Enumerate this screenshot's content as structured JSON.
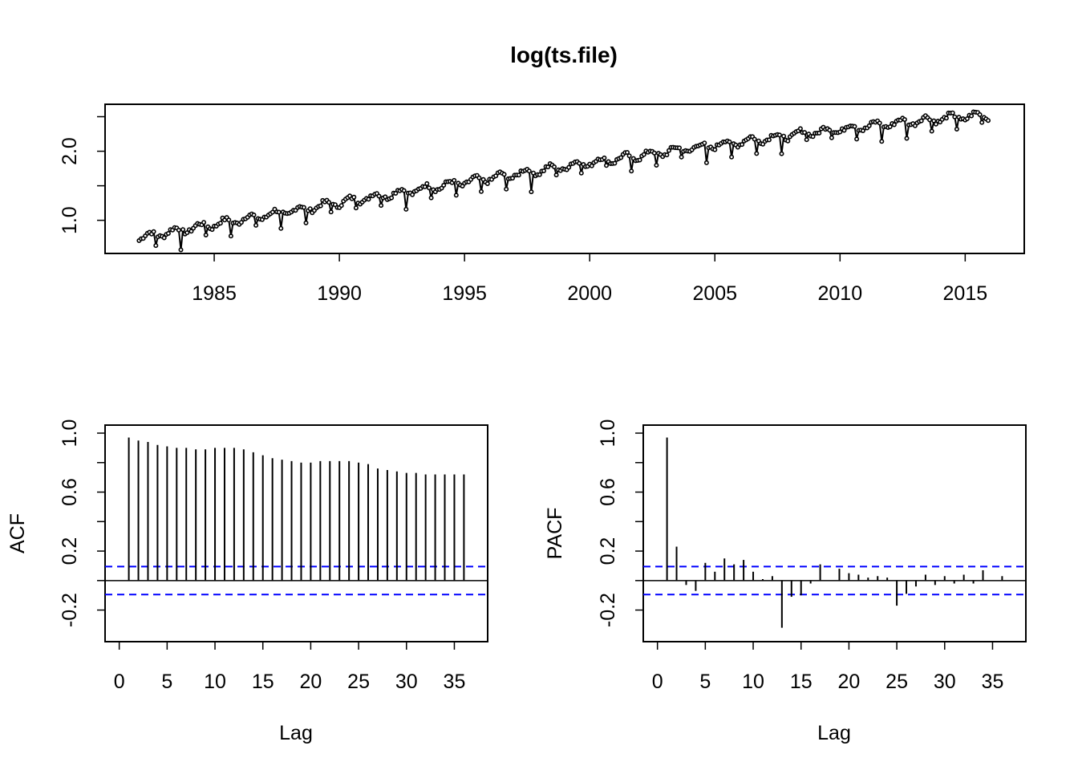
{
  "chart_data": [
    {
      "type": "line",
      "title": "log(ts.file)",
      "xlabel": "",
      "ylabel": "",
      "x_start": 1982.0,
      "frequency": 12,
      "xlim": [
        1982,
        2016
      ],
      "ylim": [
        0.6,
        2.6
      ],
      "xticks": [
        1985,
        1990,
        1995,
        2000,
        2005,
        2010,
        2015
      ],
      "yticks": [
        1.0,
        1.5,
        2.0,
        2.5
      ],
      "ytick_labels": [
        "1.0",
        "",
        "2.0",
        ""
      ],
      "trend": {
        "start": 0.75,
        "end": 2.52,
        "seasonal_amplitude": 0.05,
        "dip_month": 8,
        "dip_depth": 0.18
      },
      "line_color": "#000000",
      "grid": false
    },
    {
      "type": "bar",
      "title": "",
      "xlabel": "Lag",
      "ylabel": "ACF",
      "lags": [
        1,
        2,
        3,
        4,
        5,
        6,
        7,
        8,
        9,
        10,
        11,
        12,
        13,
        14,
        15,
        16,
        17,
        18,
        19,
        20,
        21,
        22,
        23,
        24,
        25,
        26,
        27,
        28,
        29,
        30,
        31,
        32,
        33,
        34,
        35,
        36
      ],
      "values": [
        0.97,
        0.95,
        0.94,
        0.92,
        0.91,
        0.9,
        0.9,
        0.89,
        0.89,
        0.9,
        0.9,
        0.9,
        0.89,
        0.87,
        0.85,
        0.83,
        0.82,
        0.81,
        0.8,
        0.8,
        0.81,
        0.81,
        0.81,
        0.81,
        0.8,
        0.79,
        0.76,
        0.75,
        0.74,
        0.73,
        0.73,
        0.72,
        0.72,
        0.72,
        0.72,
        0.72
      ],
      "ci": 0.095,
      "ci_color": "#0000ff",
      "xlim": [
        0,
        37
      ],
      "ylim": [
        -0.36,
        1.0
      ],
      "xticks": [
        0,
        5,
        10,
        15,
        20,
        25,
        30,
        35
      ],
      "yticks": [
        -0.2,
        0.2,
        0.6,
        1.0
      ],
      "ytick_labels": [
        "-0.2",
        "0.2",
        "0.6",
        "1.0"
      ]
    },
    {
      "type": "bar",
      "title": "",
      "xlabel": "Lag",
      "ylabel": "PACF",
      "lags": [
        1,
        2,
        3,
        4,
        5,
        6,
        7,
        8,
        9,
        10,
        11,
        12,
        13,
        14,
        15,
        16,
        17,
        18,
        19,
        20,
        21,
        22,
        23,
        24,
        25,
        26,
        27,
        28,
        29,
        30,
        31,
        32,
        33,
        34,
        35,
        36
      ],
      "values": [
        0.97,
        0.23,
        -0.03,
        -0.07,
        0.12,
        0.06,
        0.15,
        0.11,
        0.14,
        0.06,
        0.01,
        0.03,
        -0.32,
        -0.11,
        -0.1,
        -0.02,
        0.11,
        0.0,
        0.08,
        0.05,
        0.04,
        0.02,
        0.03,
        0.02,
        -0.17,
        -0.09,
        -0.04,
        0.04,
        -0.03,
        0.03,
        -0.02,
        0.04,
        -0.02,
        0.07,
        0.0,
        0.03
      ],
      "ci": 0.095,
      "ci_color": "#0000ff",
      "xlim": [
        0,
        37
      ],
      "ylim": [
        -0.36,
        1.0
      ],
      "xticks": [
        0,
        5,
        10,
        15,
        20,
        25,
        30,
        35
      ],
      "yticks": [
        -0.2,
        0.2,
        0.6,
        1.0
      ],
      "ytick_labels": [
        "-0.2",
        "0.2",
        "0.6",
        "1.0"
      ]
    }
  ]
}
